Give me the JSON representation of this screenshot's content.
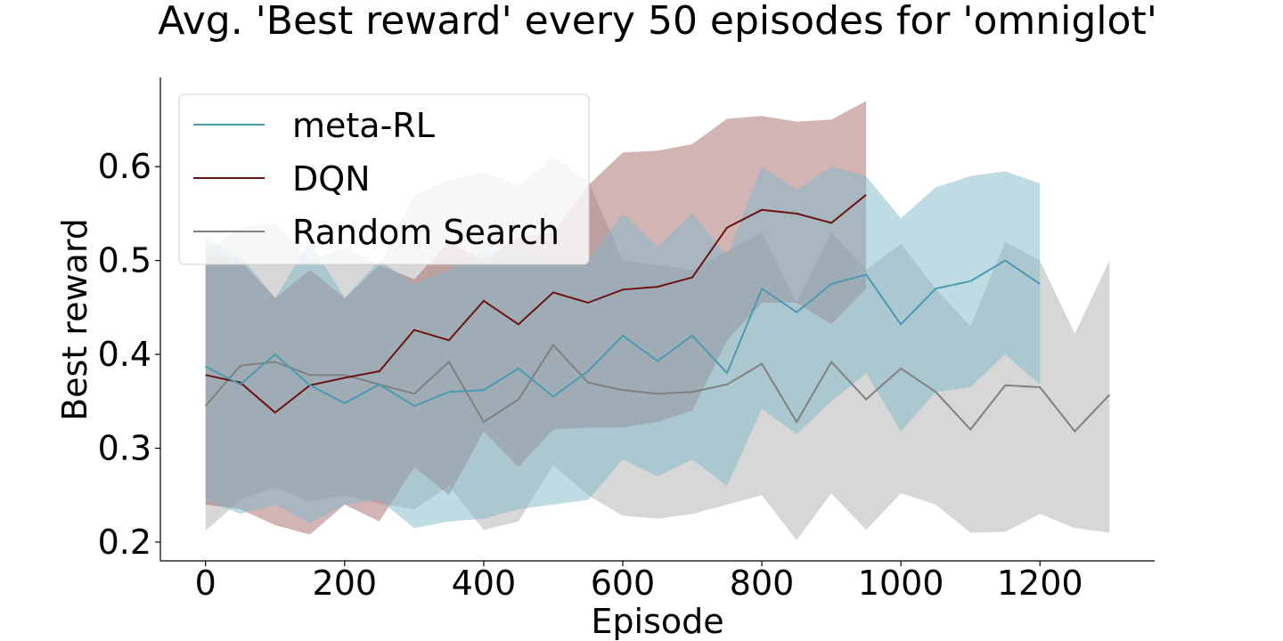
{
  "chart_data": {
    "type": "line",
    "title": "Avg. 'Best reward' every 50 episodes for 'omniglot'",
    "xlabel": "Episode",
    "ylabel": "Best reward",
    "xlim": [
      -65,
      1365
    ],
    "ylim": [
      0.18,
      0.695
    ],
    "xticks": [
      0,
      200,
      400,
      600,
      800,
      1000,
      1200
    ],
    "yticks": [
      0.2,
      0.3,
      0.4,
      0.5,
      0.6
    ],
    "grid": false,
    "legend_position": "top-left",
    "series": [
      {
        "name": "meta-RL",
        "color": "#4a9bb0",
        "fill_color": "#7fb8c9",
        "x": [
          0,
          50,
          100,
          150,
          200,
          250,
          300,
          350,
          400,
          450,
          500,
          550,
          600,
          650,
          700,
          750,
          800,
          850,
          900,
          950,
          1000,
          1050,
          1100,
          1150,
          1200
        ],
        "mean": [
          0.387,
          0.368,
          0.4,
          0.367,
          0.348,
          0.368,
          0.345,
          0.36,
          0.362,
          0.385,
          0.355,
          0.382,
          0.42,
          0.393,
          0.42,
          0.38,
          0.47,
          0.445,
          0.475,
          0.485,
          0.432,
          0.47,
          0.478,
          0.5,
          0.475
        ],
        "upper": [
          0.525,
          0.505,
          0.46,
          0.52,
          0.46,
          0.5,
          0.475,
          0.49,
          0.51,
          0.51,
          0.495,
          0.5,
          0.55,
          0.515,
          0.55,
          0.505,
          0.6,
          0.575,
          0.6,
          0.59,
          0.545,
          0.578,
          0.59,
          0.595,
          0.582
        ],
        "lower": [
          0.245,
          0.23,
          0.24,
          0.22,
          0.24,
          0.245,
          0.215,
          0.222,
          0.225,
          0.235,
          0.24,
          0.245,
          0.288,
          0.27,
          0.288,
          0.26,
          0.342,
          0.315,
          0.35,
          0.38,
          0.318,
          0.36,
          0.365,
          0.4,
          0.368
        ]
      },
      {
        "name": "DQN",
        "color": "#6b1414",
        "fill_color": "#a86a6a",
        "x": [
          0,
          50,
          100,
          150,
          200,
          250,
          300,
          350,
          400,
          450,
          500,
          550,
          600,
          650,
          700,
          750,
          800,
          850,
          900,
          950
        ],
        "mean": [
          0.378,
          0.37,
          0.338,
          0.367,
          0.375,
          0.382,
          0.426,
          0.415,
          0.457,
          0.432,
          0.466,
          0.455,
          0.469,
          0.472,
          0.482,
          0.535,
          0.554,
          0.55,
          0.54,
          0.57
        ],
        "upper": [
          0.515,
          0.5,
          0.46,
          0.49,
          0.46,
          0.495,
          0.48,
          0.52,
          0.5,
          0.525,
          0.53,
          0.58,
          0.615,
          0.617,
          0.624,
          0.651,
          0.654,
          0.648,
          0.65,
          0.67
        ],
        "lower": [
          0.24,
          0.235,
          0.218,
          0.208,
          0.24,
          0.222,
          0.28,
          0.25,
          0.318,
          0.28,
          0.32,
          0.322,
          0.322,
          0.328,
          0.34,
          0.415,
          0.455,
          0.455,
          0.432,
          0.47
        ]
      },
      {
        "name": "Random Search",
        "color": "#808080",
        "fill_color": "#b0b0b0",
        "x": [
          0,
          50,
          100,
          150,
          200,
          250,
          300,
          350,
          400,
          450,
          500,
          550,
          600,
          650,
          700,
          750,
          800,
          850,
          900,
          950,
          1000,
          1050,
          1100,
          1150,
          1200,
          1250,
          1300
        ],
        "mean": [
          0.345,
          0.388,
          0.392,
          0.378,
          0.378,
          0.368,
          0.358,
          0.392,
          0.328,
          0.352,
          0.41,
          0.37,
          0.362,
          0.358,
          0.36,
          0.368,
          0.39,
          0.328,
          0.392,
          0.352,
          0.385,
          0.36,
          0.32,
          0.367,
          0.365,
          0.318,
          0.357
        ],
        "upper": [
          0.508,
          0.535,
          0.54,
          0.5,
          0.515,
          0.495,
          0.57,
          0.585,
          0.595,
          0.58,
          0.61,
          0.585,
          0.5,
          0.495,
          0.49,
          0.51,
          0.53,
          0.455,
          0.53,
          0.49,
          0.518,
          0.47,
          0.43,
          0.52,
          0.5,
          0.422,
          0.5
        ],
        "lower": [
          0.212,
          0.245,
          0.258,
          0.243,
          0.25,
          0.241,
          0.235,
          0.26,
          0.213,
          0.222,
          0.282,
          0.25,
          0.228,
          0.225,
          0.23,
          0.24,
          0.25,
          0.202,
          0.252,
          0.213,
          0.252,
          0.24,
          0.21,
          0.211,
          0.23,
          0.215,
          0.21
        ]
      }
    ]
  }
}
